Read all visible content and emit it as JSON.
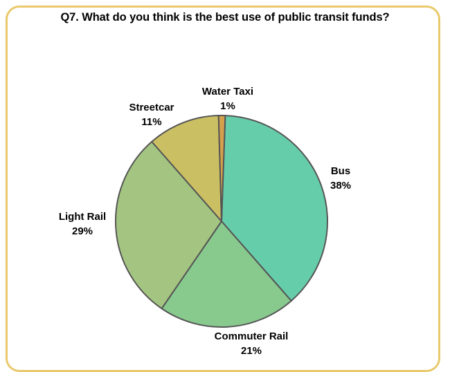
{
  "chart_data": {
    "type": "pie",
    "title": "Q7. What do you think is the best use of public transit funds?",
    "slices": [
      {
        "name": "Bus",
        "value": 38,
        "label": "38%",
        "color": "#66cdaa"
      },
      {
        "name": "Commuter Rail",
        "value": 21,
        "label": "21%",
        "color": "#88c98e"
      },
      {
        "name": "Light Rail",
        "value": 29,
        "label": "29%",
        "color": "#a3c581"
      },
      {
        "name": "Streetcar",
        "value": 11,
        "label": "11%",
        "color": "#cbbf63"
      },
      {
        "name": "Water Taxi",
        "value": 1,
        "label": "1%",
        "color": "#d4a04c"
      }
    ],
    "slice_outline_color": "#555555",
    "legend": "none",
    "frame_color": "#e9c96b"
  }
}
